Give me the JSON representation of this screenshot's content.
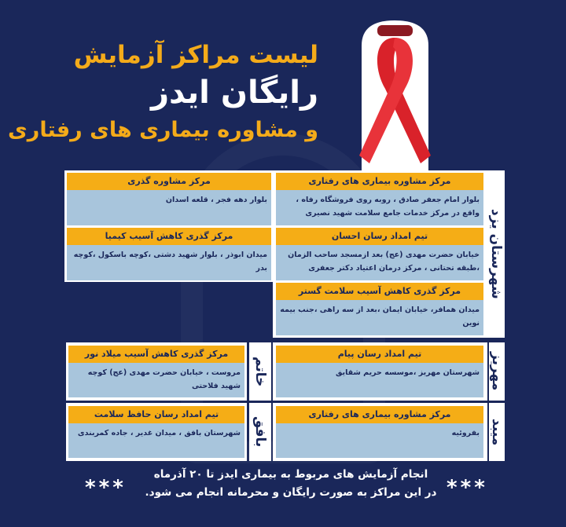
{
  "title": {
    "line1": "لیست مراکز آزمایش",
    "line2": "رایگان ایدز",
    "line3": "و مشاوره بیماری های رفتاری"
  },
  "colors": {
    "background": "#1a275a",
    "header_yellow": "#f5ad16",
    "cell_body": "#a8c5dc",
    "ribbon": "#d9222a"
  },
  "logo": "red-ribbon-icon",
  "regions": {
    "yazd": {
      "label": "شهرستان یزد",
      "centers": [
        {
          "name": "مرکز مشاوره بیماری های رفتاری",
          "address": "بلوار امام جعفر صادق ، روبه روی فروشگاه رفاه ، واقع در مرکز خدمات جامع سلامت شهید نصیری"
        },
        {
          "name": "مرکز مشاوره گذری",
          "address": "بلوار دهه فجر ، قلعه اسدان"
        },
        {
          "name": "تیم امداد رسان احسان",
          "address": "خیابان حضرت مهدی (عج) بعد ازمسجد ساحب الزمان ،طبقه تحتانی ، مرکز درمان اعتیاد دکتر جعفری"
        },
        {
          "name": "مرکز گذری کاهش آسیب کیمیا",
          "address": "میدان ابوذر ، بلوار شهید دشتی ،کوچه باسکول ،کوچه بدر"
        },
        {
          "name": "مرکز گذری کاهش آسیب سلامت گستر",
          "address": "میدان همافر، خیابان ایمان ،بعد از سه راهی ،جنب بیمه نوین"
        }
      ]
    },
    "mehriz": {
      "label": "مهریز",
      "centers": [
        {
          "name": "تیم امداد رسان پیام",
          "address": "شهرستان مهریز ،موسسه حریم شقایق"
        }
      ]
    },
    "khatam": {
      "label": "خاتم",
      "centers": [
        {
          "name": "مرکز گذری کاهش آسیب میلاد نور",
          "address": "مروست ، خیابان حضرت مهدی (عج) کوچه شهید فلاحتی"
        }
      ]
    },
    "meybod": {
      "label": "میبد",
      "centers": [
        {
          "name": "مرکز مشاوره بیماری های رفتاری",
          "address": "بفروئیه"
        }
      ]
    },
    "bafq": {
      "label": "بافق",
      "centers": [
        {
          "name": "تیم امداد رسان حافظ سلامت",
          "address": "شهرستان بافق ، میدان غدیر ، جاده کمربندی"
        }
      ]
    }
  },
  "footer": {
    "line1": "انجام آزمایش های مربوط به بیماری ایدز تا ۲۰ آذرماه",
    "line2": "در این مراکز به صورت رایگان و محرمانه انجام می شود.",
    "stars": "***"
  }
}
